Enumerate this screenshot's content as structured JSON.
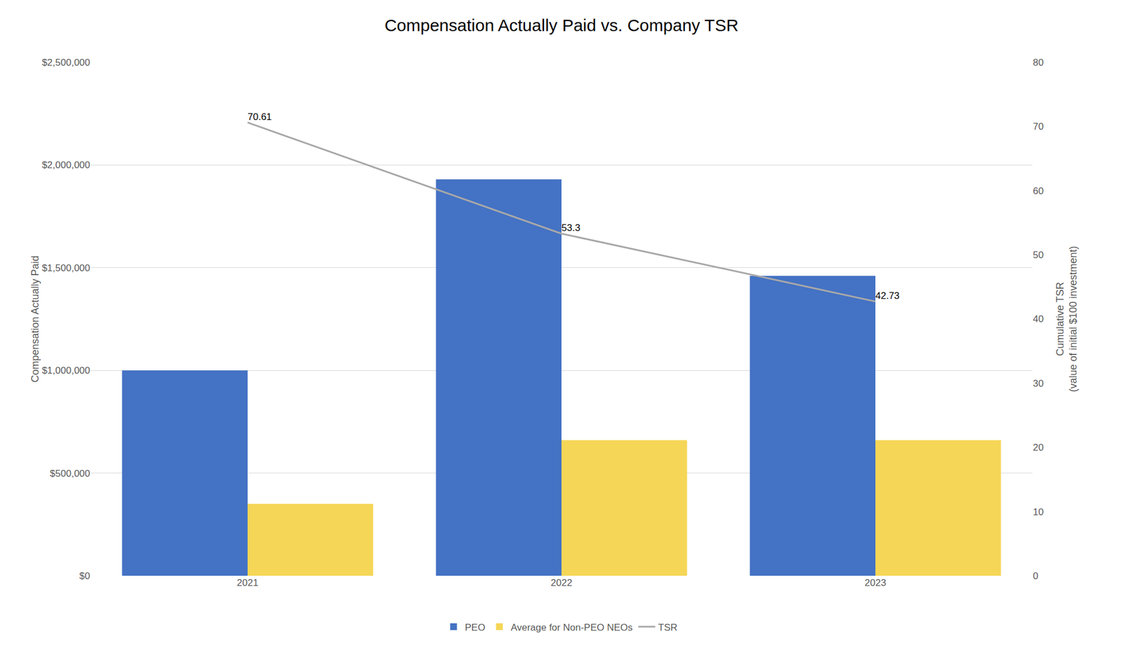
{
  "chart_data": {
    "type": "bar",
    "title": "Compensation Actually Paid vs. Company TSR",
    "categories": [
      "2021",
      "2022",
      "2023"
    ],
    "series": [
      {
        "name": "PEO",
        "type": "bar",
        "color": "#4472C4",
        "values": [
          1000000,
          1930000,
          1460000
        ]
      },
      {
        "name": "Average for Non-PEO NEOs",
        "type": "bar",
        "color": "#F5D657",
        "values": [
          350000,
          660000,
          660000
        ]
      },
      {
        "name": "TSR",
        "type": "line",
        "axis": "y2",
        "color": "#A8A8A8",
        "data_labels": true,
        "values": [
          70.61,
          53.3,
          42.73
        ]
      }
    ],
    "ylabel": "Compensation Actually Paid",
    "y2label": "Cumulative TSR\n(value of initial $100 investment)",
    "ylim": [
      0,
      2500000
    ],
    "yticks": [
      {
        "value": 0,
        "label": "$0"
      },
      {
        "value": 500000,
        "label": "$500,000"
      },
      {
        "value": 1000000,
        "label": "$1,000,000"
      },
      {
        "value": 1500000,
        "label": "$1,500,000"
      },
      {
        "value": 2000000,
        "label": "$2,000,000"
      },
      {
        "value": 2500000,
        "label": "$2,500,000"
      }
    ],
    "y2lim": [
      0,
      80
    ],
    "y2ticks": [
      0,
      10,
      20,
      30,
      40,
      50,
      60,
      70,
      80
    ],
    "grid": true,
    "legend": "bottom"
  }
}
